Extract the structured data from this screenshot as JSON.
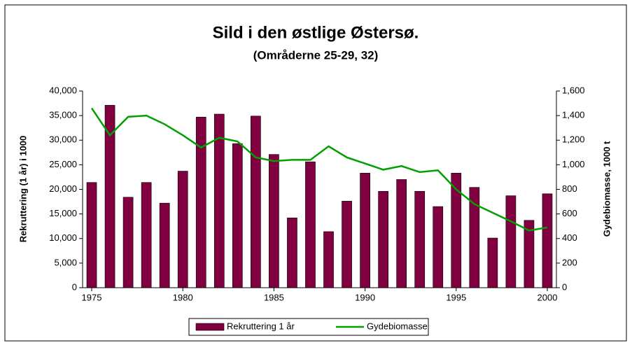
{
  "chart_data": {
    "type": "bar_line",
    "title": "Sild i den østlige Østersø.",
    "subtitle": "(Områderne 25-29, 32)",
    "ylabel": "Rekruttering (1 år) i 1000",
    "y2label": "Gydebiomasse,  1000 t",
    "x": [
      1975,
      1976,
      1977,
      1978,
      1979,
      1980,
      1981,
      1982,
      1983,
      1984,
      1985,
      1986,
      1987,
      1988,
      1989,
      1990,
      1991,
      1992,
      1993,
      1994,
      1995,
      1996,
      1997,
      1998,
      1999,
      2000
    ],
    "xlim": [
      1974.5,
      2000.5
    ],
    "xticks": [
      1975,
      1980,
      1985,
      1990,
      1995,
      2000
    ],
    "ylim": [
      0,
      40000
    ],
    "yticks": [
      0,
      {
        "value": 5000,
        "label": "5,000"
      },
      {
        "value": 10000,
        "label": "10,000"
      },
      {
        "value": 15000,
        "label": "15,000"
      },
      {
        "value": 20000,
        "label": "20,000"
      },
      {
        "value": 25000,
        "label": "25,000"
      },
      {
        "value": 30000,
        "label": "30,000"
      },
      {
        "value": 35000,
        "label": "35,000"
      },
      {
        "value": 40000,
        "label": "40,000"
      }
    ],
    "y2lim": [
      0,
      1600
    ],
    "y2ticks": [
      0,
      200,
      400,
      600,
      800,
      {
        "value": 1000,
        "label": "1,000"
      },
      {
        "value": 1200,
        "label": "1,200"
      },
      {
        "value": 1400,
        "label": "1,400"
      },
      {
        "value": 1600,
        "label": "1,600"
      }
    ],
    "series": [
      {
        "name": "Rekruttering 1 år",
        "type": "bar",
        "color": "#800040",
        "values": [
          21400,
          37100,
          18400,
          21400,
          17200,
          23700,
          34700,
          35300,
          29300,
          34900,
          27100,
          14200,
          25600,
          11400,
          17600,
          23300,
          19600,
          22000,
          19600,
          16500,
          23300,
          20400,
          10100,
          18700,
          13700,
          19100
        ]
      },
      {
        "name": "Gydebiomasse",
        "type": "line",
        "axis": "y2",
        "color": "#00a000",
        "values": [
          1460,
          1240,
          1390,
          1400,
          1330,
          1240,
          1140,
          1220,
          1190,
          1060,
          1030,
          1040,
          1040,
          1150,
          1060,
          1010,
          960,
          990,
          940,
          955,
          800,
          680,
          610,
          540,
          465,
          490
        ]
      }
    ]
  }
}
